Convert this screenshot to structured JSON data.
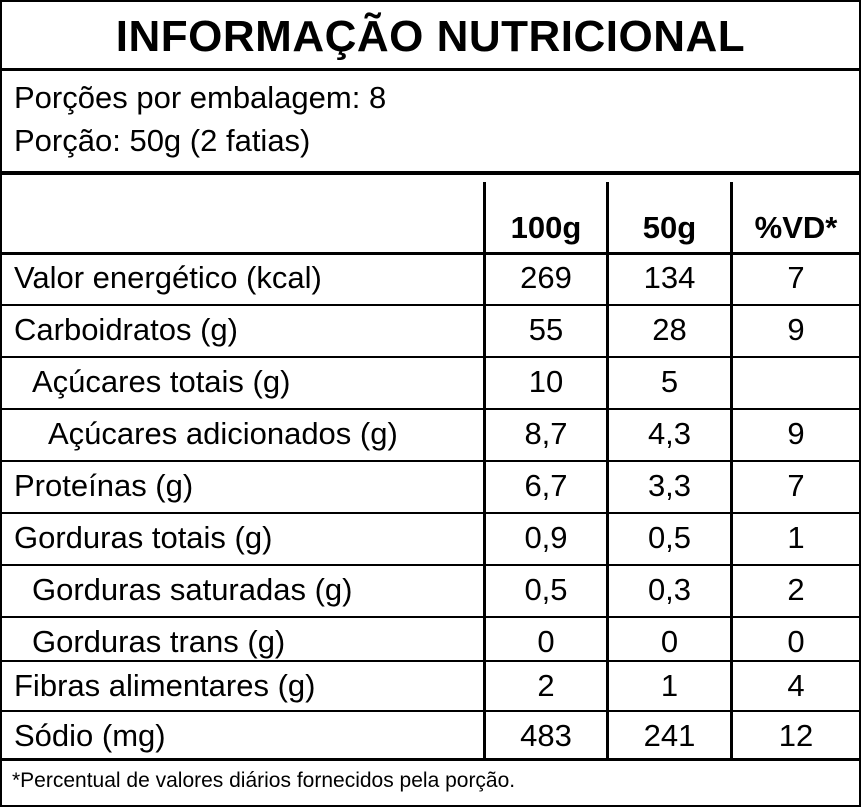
{
  "title": "INFORMAÇÃO NUTRICIONAL",
  "servings_per_package": "Porções por embalagem: 8",
  "serving_size": "Porção: 50g (2 fatias)",
  "columns": [
    "100g",
    "50g",
    "%VD*"
  ],
  "rows": [
    {
      "name": "Valor energético (kcal)",
      "per100": "269",
      "perServing": "134",
      "dv": "7"
    },
    {
      "name": "Carboidratos (g)",
      "per100": "55",
      "perServing": "28",
      "dv": "9"
    },
    {
      "name": "Açúcares totais (g)",
      "per100": "10",
      "perServing": "5",
      "dv": ""
    },
    {
      "name": "Açúcares adicionados (g)",
      "per100": "8,7",
      "perServing": "4,3",
      "dv": "9"
    },
    {
      "name": "Proteínas (g)",
      "per100": "6,7",
      "perServing": "3,3",
      "dv": "7"
    },
    {
      "name": "Gorduras totais (g)",
      "per100": "0,9",
      "perServing": "0,5",
      "dv": "1"
    },
    {
      "name": "Gorduras saturadas (g)",
      "per100": "0,5",
      "perServing": "0,3",
      "dv": "2"
    },
    {
      "name": "Gorduras trans (g)",
      "per100": "0",
      "perServing": "0",
      "dv": "0"
    },
    {
      "name": "Fibras alimentares (g)",
      "per100": "2",
      "perServing": "1",
      "dv": "4"
    },
    {
      "name": "Sódio (mg)",
      "per100": "483",
      "perServing": "241",
      "dv": "12"
    }
  ],
  "footnote": "*Percentual de valores diários fornecidos pela porção."
}
